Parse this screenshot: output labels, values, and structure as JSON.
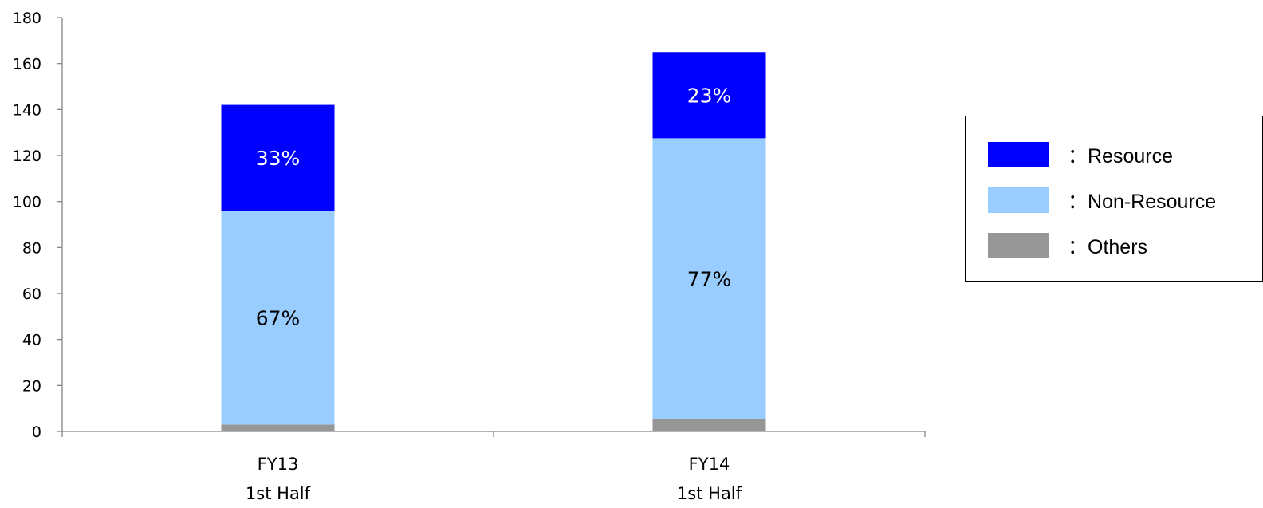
{
  "chart_data": {
    "type": "bar",
    "stacked": true,
    "categories": [
      [
        "FY13",
        "1st Half"
      ],
      [
        "FY14",
        "1st Half"
      ]
    ],
    "series": [
      {
        "name": "Others",
        "color": "#969696",
        "values": [
          3,
          5.5
        ],
        "labels": [
          "",
          ""
        ]
      },
      {
        "name": "Non-Resource",
        "color": "#99ccff",
        "values": [
          93,
          122
        ],
        "labels": [
          "67%",
          "77%"
        ],
        "label_color": "#000000"
      },
      {
        "name": "Resource",
        "color": "#0000ff",
        "values": [
          46,
          37.5
        ],
        "labels": [
          "33%",
          "23%"
        ],
        "label_color": "#ffffff"
      }
    ],
    "ylim": [
      0,
      180
    ],
    "yticks": [
      0,
      20,
      40,
      60,
      80,
      100,
      120,
      140,
      160,
      180
    ],
    "grid": false,
    "legend_position": "right"
  },
  "legend": {
    "items": [
      {
        "label": "：Resource",
        "color": "#0000ff"
      },
      {
        "label": "：Non-Resource",
        "color": "#99ccff"
      },
      {
        "label": "：Others",
        "color": "#969696"
      }
    ]
  }
}
